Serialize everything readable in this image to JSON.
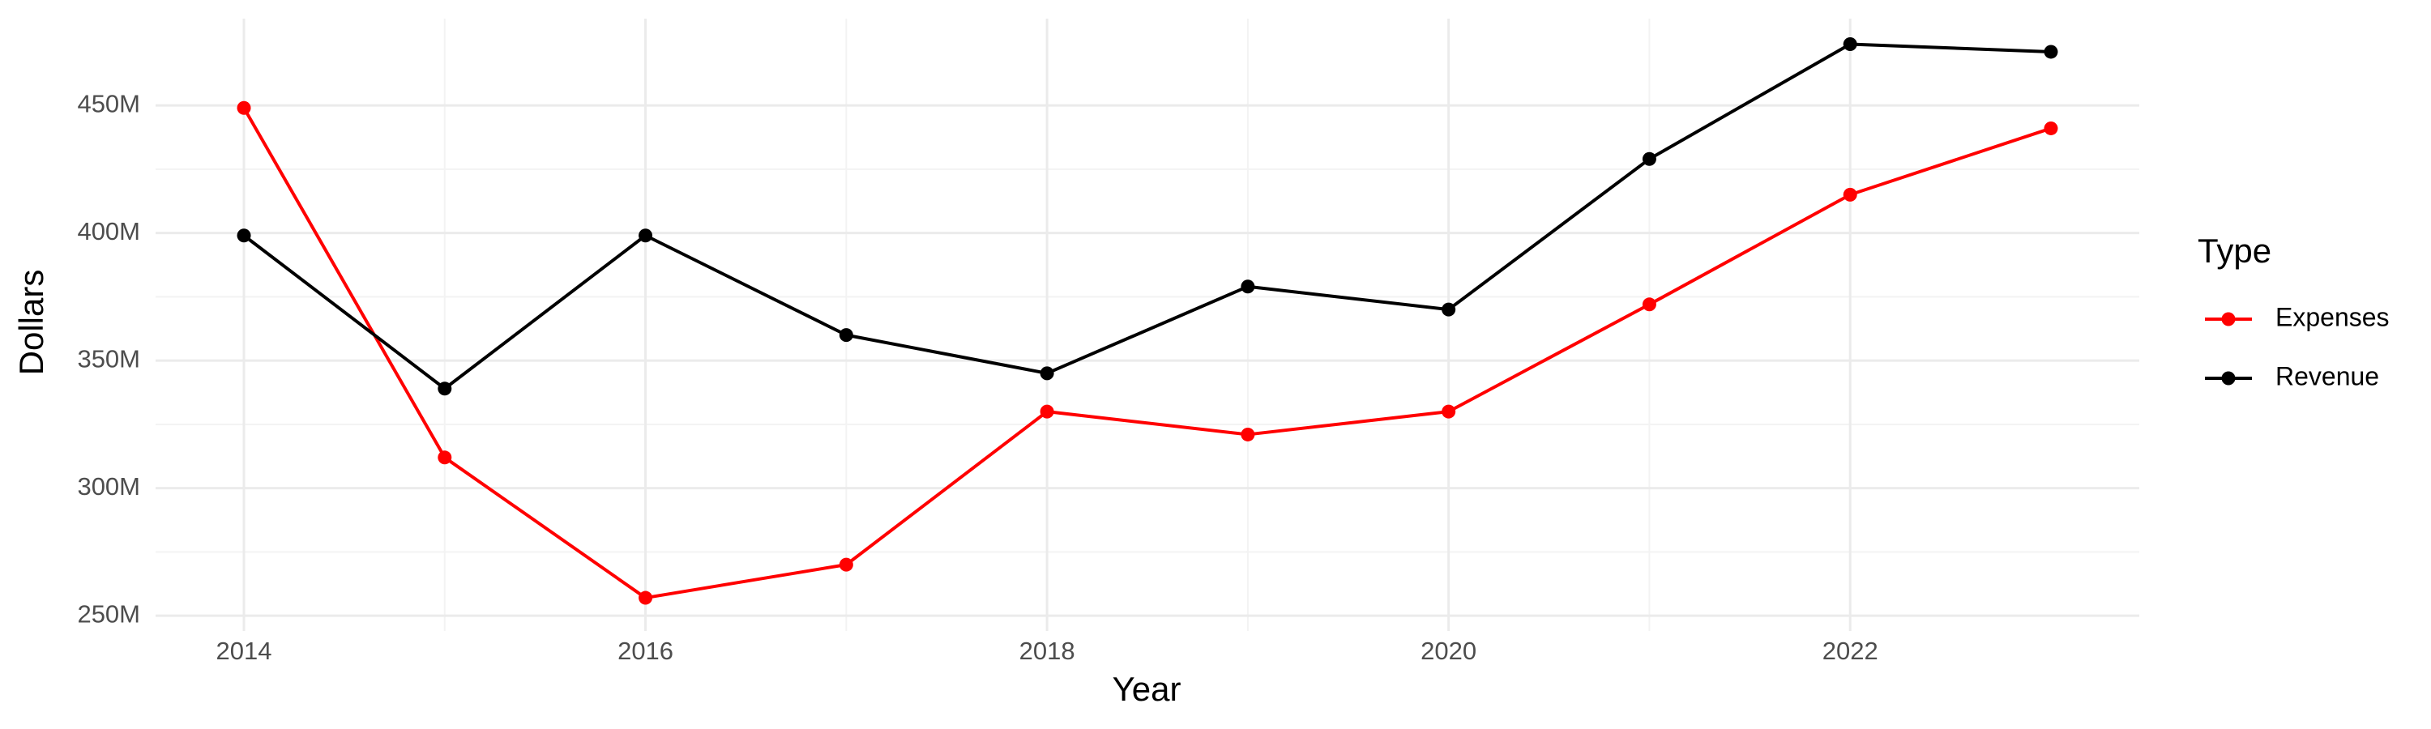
{
  "chart_data": {
    "type": "line",
    "x_label": "Year",
    "y_label": "Dollars",
    "legend_title": "Type",
    "x": [
      2014,
      2015,
      2016,
      2017,
      2018,
      2019,
      2020,
      2021,
      2022,
      2023
    ],
    "series": [
      {
        "name": "Expenses",
        "color": "#ff0000",
        "values": [
          449000000,
          312000000,
          257000000,
          270000000,
          330000000,
          321000000,
          330000000,
          372000000,
          415000000,
          441000000
        ]
      },
      {
        "name": "Revenue",
        "color": "#000000",
        "values": [
          399000000,
          339000000,
          399000000,
          360000000,
          345000000,
          379000000,
          370000000,
          429000000,
          474000000,
          471000000
        ]
      }
    ],
    "xlim": [
      2013.56,
      2023.44
    ],
    "xticks": [
      2014,
      2016,
      2018,
      2020,
      2022
    ],
    "ylim": [
      244000000,
      484000000
    ],
    "yticks": [
      {
        "value": 250000000,
        "label": "250M"
      },
      {
        "value": 300000000,
        "label": "300M"
      },
      {
        "value": 350000000,
        "label": "350M"
      },
      {
        "value": 400000000,
        "label": "400M"
      },
      {
        "value": 450000000,
        "label": "450M"
      }
    ],
    "grid": true,
    "legend": "right"
  }
}
